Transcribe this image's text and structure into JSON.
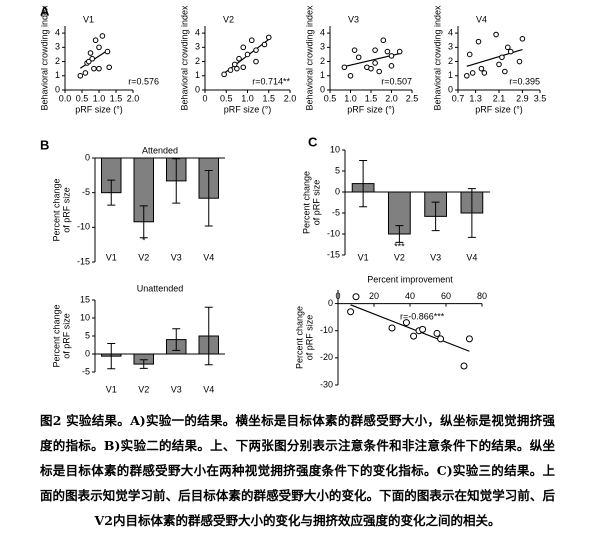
{
  "panel_labels": [
    "A",
    "B",
    "C"
  ],
  "figure_caption": "图2  实验结果。A)实验一的结果。横坐标是目标体素的群感受野大小，纵坐标是视觉拥挤强度的指标。B)实验二的结果。上、下两张图分别表示注意条件和非注意条件下的结果。纵坐标是目标体素的群感受野大小在两种视觉拥挤强度条件下的变化指标。C)实验三的结果。上面的图表示知觉学习前、后目标体素的群感受野大小的变化。下面的图表示在知觉学习前、后V2内目标体素的群感受野大小的变化与拥挤效应强度的变化之间的相关。",
  "chart_data": [
    {
      "type": "scatter",
      "title": "V1",
      "x_label": "pRF size (°)",
      "y_label": [
        "Behavioral crowding index"
      ],
      "annotation": "r=0.576",
      "fit": true,
      "color": "#000000",
      "x": [
        0.45,
        0.6,
        0.65,
        0.7,
        0.75,
        0.8,
        0.85,
        0.9,
        1.0,
        1.0,
        1.1,
        1.25,
        1.3
      ],
      "y": [
        1.0,
        1.2,
        1.9,
        2.0,
        2.6,
        2.2,
        1.5,
        3.5,
        1.5,
        3.0,
        3.8,
        2.7,
        1.6
      ],
      "xlim": [
        0,
        2
      ],
      "xticks": [
        {
          "value": 0,
          "label": "0.0"
        },
        0.5,
        {
          "value": 1,
          "label": "1.0"
        },
        1.5,
        {
          "value": 2,
          "label": "2.0"
        }
      ],
      "ylim": [
        0,
        4.5
      ],
      "yticks": [
        0,
        1,
        2,
        3,
        4
      ]
    },
    {
      "type": "scatter",
      "title": "V2",
      "x_label": "pRF size (°)",
      "y_label": [
        "Behavioral crowding index"
      ],
      "annotation": "r=0.714**",
      "fit": true,
      "color": "#000000",
      "x": [
        0.45,
        0.6,
        0.7,
        0.75,
        0.8,
        0.9,
        0.9,
        1.0,
        1.1,
        1.2,
        1.2,
        1.4,
        1.5
      ],
      "y": [
        1.1,
        1.4,
        1.8,
        1.5,
        2.2,
        1.6,
        3.0,
        2.5,
        3.5,
        2.8,
        2.0,
        3.2,
        3.7
      ],
      "xlim": [
        0,
        2
      ],
      "xticks": [
        0,
        0.5,
        {
          "value": 1,
          "label": "1.0"
        },
        1.5,
        {
          "value": 2,
          "label": "2.0"
        }
      ],
      "ylim": [
        0,
        4.5
      ],
      "yticks": [
        0,
        1,
        2,
        3,
        4
      ]
    },
    {
      "type": "scatter",
      "title": "V3",
      "x_label": "pRF size (°)",
      "y_label": [
        "Behavioral crowding index"
      ],
      "annotation": "r=0.507",
      "fit": true,
      "color": "#000000",
      "x": [
        0.85,
        1.0,
        1.1,
        1.2,
        1.4,
        1.5,
        1.6,
        1.6,
        1.7,
        1.8,
        1.9,
        2.0,
        2.2,
        2.0
      ],
      "y": [
        1.6,
        1.0,
        2.8,
        2.3,
        1.6,
        1.5,
        2.8,
        1.9,
        1.3,
        3.5,
        2.7,
        2.4,
        2.7,
        1.7
      ],
      "xlim": [
        0.5,
        2.5
      ],
      "xticks": [
        0.5,
        {
          "value": 1,
          "label": "1.0"
        },
        1.5,
        {
          "value": 2,
          "label": "2.0"
        },
        2.5
      ],
      "ylim": [
        0,
        4.5
      ],
      "yticks": [
        0,
        1,
        2,
        3,
        4
      ]
    },
    {
      "type": "scatter",
      "title": "V4",
      "x_label": "pRF size (°)",
      "y_label": [
        "Behavioral crowding index"
      ],
      "annotation": "r=0.395",
      "fit": true,
      "color": "#000000",
      "x": [
        1.0,
        1.1,
        1.2,
        1.4,
        1.5,
        1.6,
        2.0,
        2.1,
        2.2,
        2.3,
        2.4,
        2.5,
        2.8,
        2.9
      ],
      "y": [
        1.0,
        2.5,
        1.2,
        3.4,
        1.5,
        1.2,
        3.9,
        1.8,
        2.3,
        1.3,
        3.0,
        2.7,
        2.0,
        3.6
      ],
      "xlim": [
        0.7,
        3.5
      ],
      "xticks": [
        0.7,
        1.3,
        2.1,
        2.9,
        3.5
      ],
      "ylim": [
        0,
        4.5
      ],
      "yticks": [
        0,
        1,
        2,
        3,
        4
      ]
    },
    {
      "type": "bar",
      "title": "Attended",
      "y_label": [
        "Percent change",
        "of pRF size"
      ],
      "color": "#808080",
      "categories": [
        "V1",
        "V2",
        "V3",
        "V4"
      ],
      "values": [
        -5,
        -9.2,
        -3.3,
        -5.8
      ],
      "errors": [
        1.8,
        2.3,
        3.2,
        4
      ],
      "significance": [
        null,
        "*",
        null,
        null
      ],
      "ylim": [
        -15,
        0
      ],
      "yticks": [
        0,
        -5,
        -10,
        -15
      ]
    },
    {
      "type": "bar",
      "title": "Unattended",
      "y_label": [
        "Percent change",
        "of pRF size"
      ],
      "color": "#808080",
      "categories": [
        "V1",
        "V2",
        "V3",
        "V4"
      ],
      "values": [
        -0.6,
        -2.8,
        4,
        5
      ],
      "errors": [
        3.5,
        1.2,
        3,
        8
      ],
      "ylim": [
        -5,
        15
      ],
      "yticks": [
        15,
        10,
        5,
        0,
        -5
      ]
    },
    {
      "type": "bar",
      "y_label": [
        "Percent change",
        "of pRF size"
      ],
      "color": "#808080",
      "categories": [
        "V1",
        "V2",
        "V3",
        "V4"
      ],
      "values": [
        2,
        -10,
        -5.8,
        -5
      ],
      "errors": [
        5.5,
        2,
        3.4,
        5.8
      ],
      "significance": [
        null,
        "***",
        null,
        null
      ],
      "ylim": [
        -15,
        10
      ],
      "yticks": [
        10,
        5,
        0,
        -5,
        -10,
        -15
      ]
    },
    {
      "type": "scatter",
      "title": "Percent improvement",
      "y_label": [
        "Percent change",
        "of pRF size"
      ],
      "annotation": "r=-0.866***",
      "fit": true,
      "color": "#000000",
      "x": [
        10,
        7,
        30,
        38,
        42,
        45,
        47,
        55,
        57,
        70,
        73
      ],
      "y": [
        2.5,
        -3,
        -9,
        -7,
        -12,
        -10,
        -9.5,
        -11,
        -13,
        -23,
        -13
      ],
      "xlim": [
        0,
        80
      ],
      "xticks": [
        0,
        20,
        40,
        60,
        80
      ],
      "ylim": [
        -30,
        5
      ],
      "yticks": [
        0,
        -10,
        -20,
        -30
      ]
    }
  ]
}
